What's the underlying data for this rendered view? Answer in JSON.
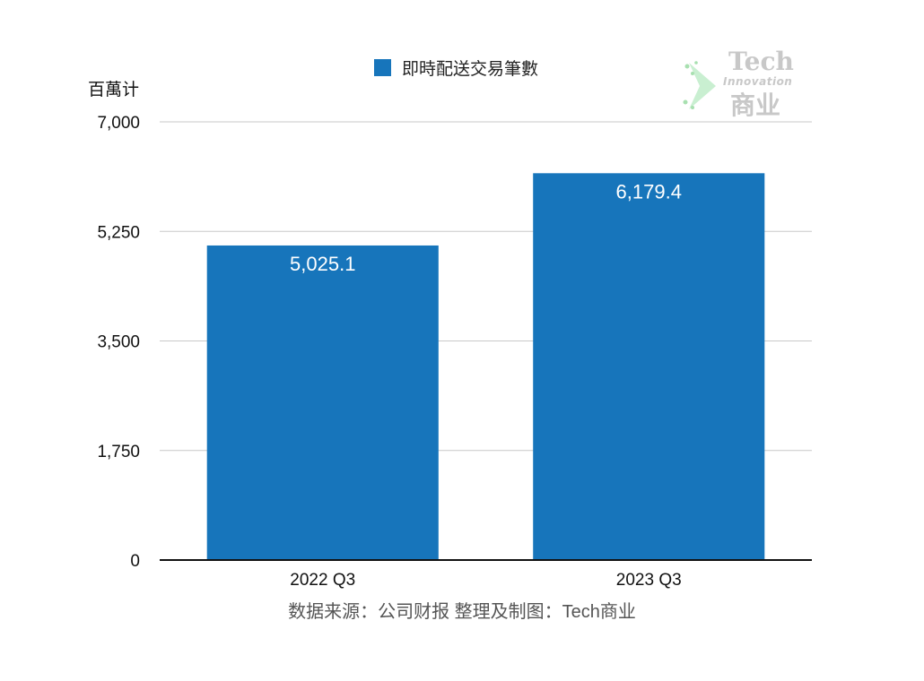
{
  "chart_data": {
    "type": "bar",
    "categories": [
      "2022 Q3",
      "2023 Q3"
    ],
    "series": [
      {
        "name": "即時配送交易筆數",
        "values": [
          5025.1,
          6179.4
        ],
        "labels": [
          "5,025.1",
          "6,179.4"
        ],
        "color": "#1775bb"
      }
    ],
    "ylabel": "百萬计",
    "ylim": [
      0,
      7000
    ],
    "yticks": [
      0,
      1750,
      3500,
      5250,
      7000
    ],
    "ytick_labels": [
      "0",
      "1,750",
      "3,500",
      "5,250",
      "7,000"
    ],
    "grid": true,
    "legend_position": "top-center"
  },
  "source_note": "数据来源：公司财报 整理及制图：Tech商业",
  "watermark": {
    "line1": "Tech",
    "line2": "Innovation",
    "line3": "商业"
  },
  "colors": {
    "bar": "#1775bb",
    "grid": "#c8c8c8",
    "axis": "#111111",
    "watermark_green": "#a8e0b0"
  }
}
